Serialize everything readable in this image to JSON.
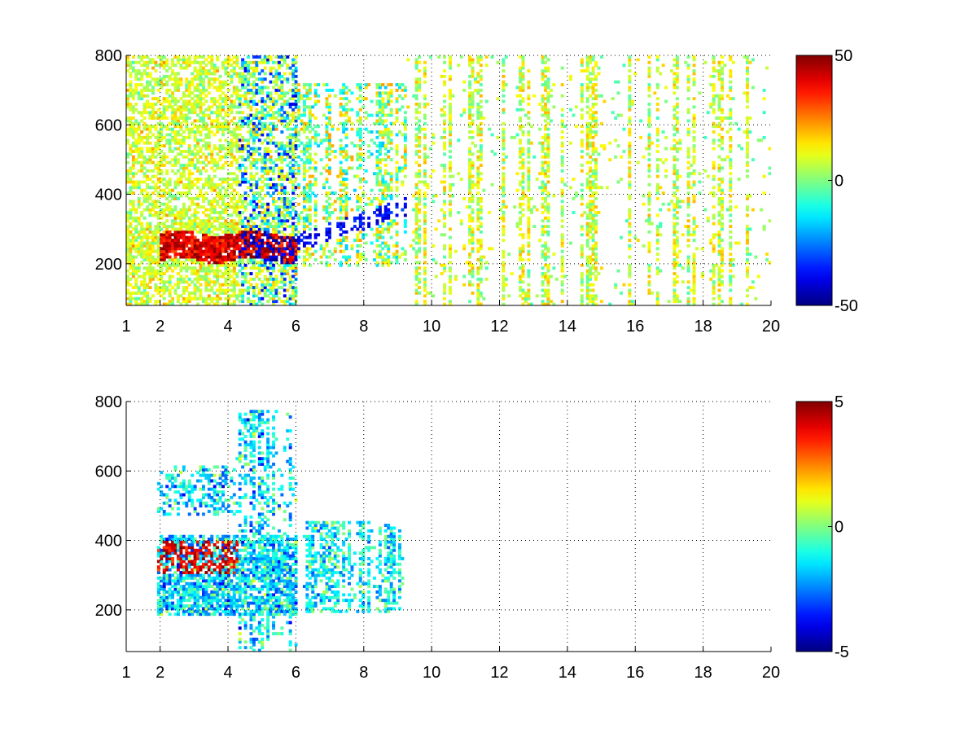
{
  "chart_data": [
    {
      "type": "heatmap",
      "title": "",
      "xlabel": "",
      "ylabel": "",
      "xlim": [
        1,
        20
      ],
      "ylim": [
        80,
        800
      ],
      "x_ticks": [
        "1",
        "2",
        "4",
        "6",
        "8",
        "10",
        "12",
        "14",
        "16",
        "18",
        "20"
      ],
      "x_tick_values": [
        1,
        2,
        4,
        6,
        8,
        10,
        12,
        14,
        16,
        18,
        20
      ],
      "y_ticks": [
        "200",
        "400",
        "600",
        "800"
      ],
      "y_tick_values": [
        200,
        400,
        600,
        800
      ],
      "grid": true,
      "colormap": "jet",
      "colorbar": {
        "min": -50,
        "max": 50,
        "ticks": [
          "50",
          "0",
          "-50"
        ],
        "tick_values": [
          50,
          0,
          -50
        ]
      },
      "features": [
        {
          "description": "strong positive band",
          "x_range": [
            2.0,
            6.0
          ],
          "y_center": 250,
          "value": 45
        },
        {
          "description": "negative band",
          "x_range": [
            4.5,
            9.2
          ],
          "y_center_start": 260,
          "y_center_end": 360,
          "value": -45
        },
        {
          "description": "weak positive cloud",
          "x_range": [
            1.0,
            6.0
          ],
          "y_range": [
            120,
            800
          ],
          "value": 15
        },
        {
          "description": "sparse scattered values",
          "x_range": [
            9.5,
            20.0
          ],
          "y_range": [
            80,
            800
          ],
          "value_range": [
            -10,
            20
          ]
        }
      ]
    },
    {
      "type": "heatmap",
      "title": "",
      "xlabel": "",
      "ylabel": "",
      "xlim": [
        1,
        20
      ],
      "ylim": [
        80,
        800
      ],
      "x_ticks": [
        "1",
        "2",
        "4",
        "6",
        "8",
        "10",
        "12",
        "14",
        "16",
        "18",
        "20"
      ],
      "x_tick_values": [
        1,
        2,
        4,
        6,
        8,
        10,
        12,
        14,
        16,
        18,
        20
      ],
      "y_ticks": [
        "200",
        "400",
        "600",
        "800"
      ],
      "y_tick_values": [
        200,
        400,
        600,
        800
      ],
      "grid": true,
      "colormap": "jet",
      "colorbar": {
        "min": -5,
        "max": 5,
        "ticks": [
          "5",
          "0",
          "-5"
        ],
        "tick_values": [
          5,
          0,
          -5
        ]
      },
      "features": [
        {
          "description": "positive patch",
          "x_range": [
            2.2,
            4.2
          ],
          "y_center": 340,
          "value": 4.5
        },
        {
          "description": "near-zero band",
          "x_range": [
            2.0,
            9.2
          ],
          "y_center": 260,
          "value": -1.5
        },
        {
          "description": "scattered mid values",
          "x_range": [
            2.0,
            6.0
          ],
          "y_range": [
            150,
            780
          ],
          "value_range": [
            -3,
            3
          ]
        }
      ]
    }
  ]
}
